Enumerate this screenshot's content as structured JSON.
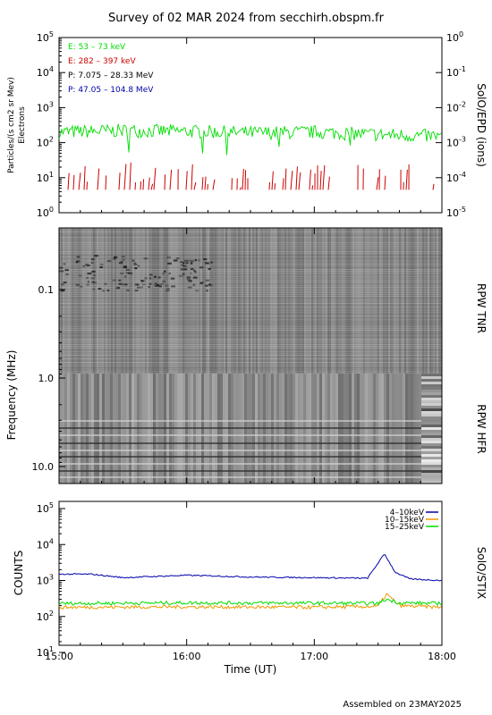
{
  "title": "Survey of 02 MAR 2024 from secchirh.obspm.fr",
  "footer": "Assembled on 23MAY2025",
  "colors": {
    "electrons_low": "#00dd00",
    "electrons_high": "#cc0000",
    "protons_low": "#000000",
    "protons_high": "#0000aa",
    "stix_4_10": "#0000aa",
    "stix_10_15": "#ee9900",
    "stix_15_25": "#00dd00"
  },
  "chart_data": [
    {
      "type": "line",
      "panel": "epd",
      "ylabel_left": "Particles/(s cm2 sr Mev)",
      "ylabel_left2": "Electrons",
      "ylabel_right": "SolO/EPD (ions)",
      "yscale": "log",
      "ylim": [
        1,
        100000
      ],
      "ylim_right": [
        1e-05,
        1
      ],
      "left_ticks": [
        "10^0",
        "10^1",
        "10^2",
        "10^3",
        "10^4",
        "10^5"
      ],
      "right_ticks": [
        "10^-5",
        "10^-4",
        "10^-3",
        "10^-2",
        "10^-1",
        "10^0"
      ],
      "xlim": [
        "15:00",
        "18:00"
      ],
      "legend": [
        "E: 53 – 73 keV",
        "E: 282 – 397 keV",
        "P: 7.075 – 28.33 MeV",
        "P: 47.05 – 104.8 MeV"
      ],
      "series": [
        {
          "name": "E: 53 – 73 keV",
          "x": [
            "15:00",
            "15:30",
            "16:00",
            "16:30",
            "17:00",
            "17:30",
            "18:00"
          ],
          "values": [
            200,
            220,
            210,
            190,
            200,
            170,
            150
          ]
        },
        {
          "name": "E: 282 – 397 keV",
          "x": [
            "15:00",
            "15:30",
            "16:00",
            "16:30",
            "17:00",
            "17:30",
            "18:00"
          ],
          "values": [
            5,
            7,
            6,
            5,
            6,
            8,
            5
          ]
        }
      ]
    },
    {
      "type": "heatmap",
      "panel": "rpw",
      "ylabel": "Frequency (MHz)",
      "ylabel_right_top": "RPW TNR",
      "ylabel_right_bottom": "RPW HFR",
      "yscale": "log",
      "yticks": [
        "0.1",
        "1.0",
        "10.0"
      ],
      "xlim": [
        "15:00",
        "18:00"
      ]
    },
    {
      "type": "line",
      "panel": "stix",
      "ylabel": "COUNTS",
      "ylabel_right": "SolO/STIX",
      "yscale": "log",
      "ylim": [
        10,
        100000
      ],
      "yticks": [
        "10^1",
        "10^2",
        "10^3",
        "10^4",
        "10^5"
      ],
      "xticks": [
        "15:00",
        "16:00",
        "17:00",
        "18:00"
      ],
      "xlabel": "Time (UT)",
      "series": [
        {
          "name": "4–10keV",
          "x": [
            "15:00",
            "15:15",
            "15:30",
            "16:00",
            "16:30",
            "17:00",
            "17:25",
            "17:33",
            "17:38",
            "17:45",
            "18:00"
          ],
          "values": [
            1500,
            1500,
            1200,
            1400,
            1250,
            1200,
            1150,
            5500,
            1700,
            1100,
            1000
          ]
        },
        {
          "name": "10–15keV",
          "x": [
            "15:00",
            "16:00",
            "17:00",
            "17:30",
            "17:34",
            "17:40",
            "18:00"
          ],
          "values": [
            180,
            185,
            180,
            190,
            420,
            200,
            180
          ]
        },
        {
          "name": "15–25keV",
          "x": [
            "15:00",
            "16:00",
            "17:00",
            "17:30",
            "17:34",
            "17:40",
            "18:00"
          ],
          "values": [
            230,
            240,
            235,
            230,
            300,
            240,
            230
          ]
        }
      ]
    }
  ]
}
